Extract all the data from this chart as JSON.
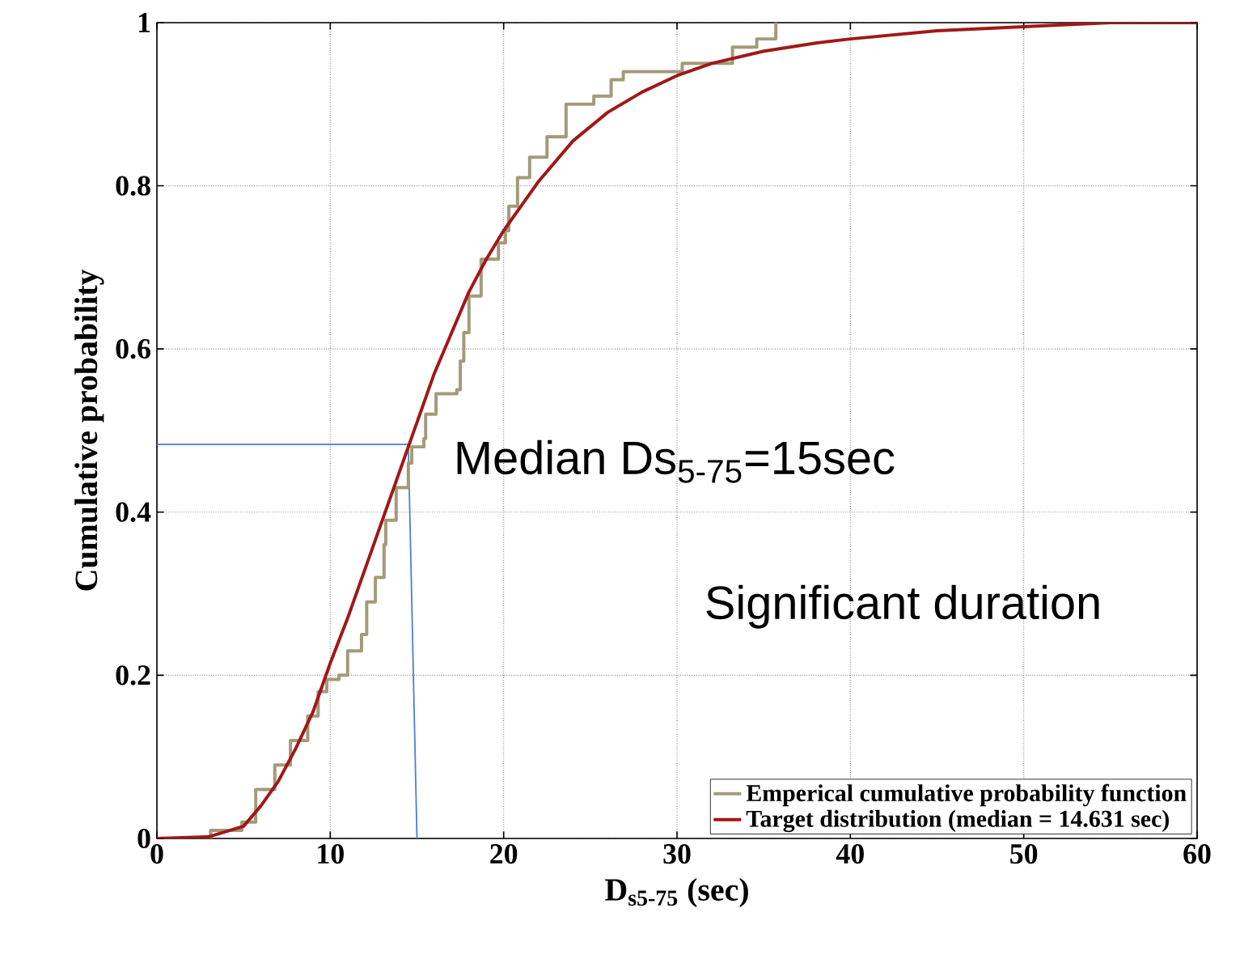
{
  "chart_data": {
    "type": "line",
    "xlabel": "D$_{s5-75}$ (sec)",
    "ylabel": "Cumulative probability",
    "xlim": [
      0,
      60
    ],
    "xticks": [
      0,
      10,
      20,
      30,
      40,
      50,
      60
    ],
    "ylim": [
      0,
      1
    ],
    "yticks": [
      0,
      0.2,
      0.4,
      0.6,
      0.8,
      1
    ],
    "grid": true,
    "legend": "bottom right",
    "series": [
      {
        "name": "Emperical cumulative probability function",
        "type": "step",
        "color": "#a39a7a",
        "x": [
          0,
          3.1,
          4.9,
          5.7,
          6.8,
          7.7,
          8.7,
          9.3,
          9.8,
          10.5,
          11,
          11.8,
          12.1,
          12.6,
          13.1,
          13.2,
          13.8,
          14.5,
          14.7,
          15.4,
          15.5,
          16.1,
          17.3,
          17.5,
          17.7,
          18,
          18.7,
          19.7,
          20.1,
          20.3,
          20.8,
          21.5,
          22.5,
          23.6,
          25.2,
          26.2,
          26.9,
          30.3,
          33.2,
          34.6,
          35.7
        ],
        "values": [
          0,
          0.01,
          0.02,
          0.06,
          0.09,
          0.12,
          0.15,
          0.18,
          0.195,
          0.2,
          0.23,
          0.25,
          0.29,
          0.32,
          0.36,
          0.39,
          0.43,
          0.46,
          0.48,
          0.49,
          0.52,
          0.545,
          0.55,
          0.585,
          0.62,
          0.665,
          0.71,
          0.73,
          0.745,
          0.775,
          0.81,
          0.835,
          0.86,
          0.9,
          0.91,
          0.93,
          0.94,
          0.95,
          0.97,
          0.98,
          1
        ]
      },
      {
        "name": "Target distribution (median = 14.631 sec)",
        "color": "#a01818",
        "x": [
          0,
          3,
          5,
          6,
          7,
          8,
          9,
          10,
          11,
          12,
          13,
          14,
          15,
          16,
          17,
          18,
          19,
          20,
          22,
          24,
          26,
          28,
          30,
          32,
          35,
          38,
          40,
          45,
          50,
          55,
          60
        ],
        "values": [
          0,
          0.002,
          0.015,
          0.04,
          0.07,
          0.11,
          0.155,
          0.215,
          0.27,
          0.33,
          0.39,
          0.45,
          0.51,
          0.57,
          0.62,
          0.67,
          0.71,
          0.745,
          0.805,
          0.855,
          0.89,
          0.915,
          0.935,
          0.95,
          0.965,
          0.975,
          0.98,
          0.99,
          0.995,
          1,
          1
        ]
      },
      {
        "color": "#4a7fd0",
        "x": [
          0,
          14.5,
          15
        ],
        "values": [
          0.483,
          0.483,
          0
        ]
      }
    ],
    "annotations": [
      "Median Ds$_{5-75}$=15sec",
      "Significant duration"
    ]
  }
}
